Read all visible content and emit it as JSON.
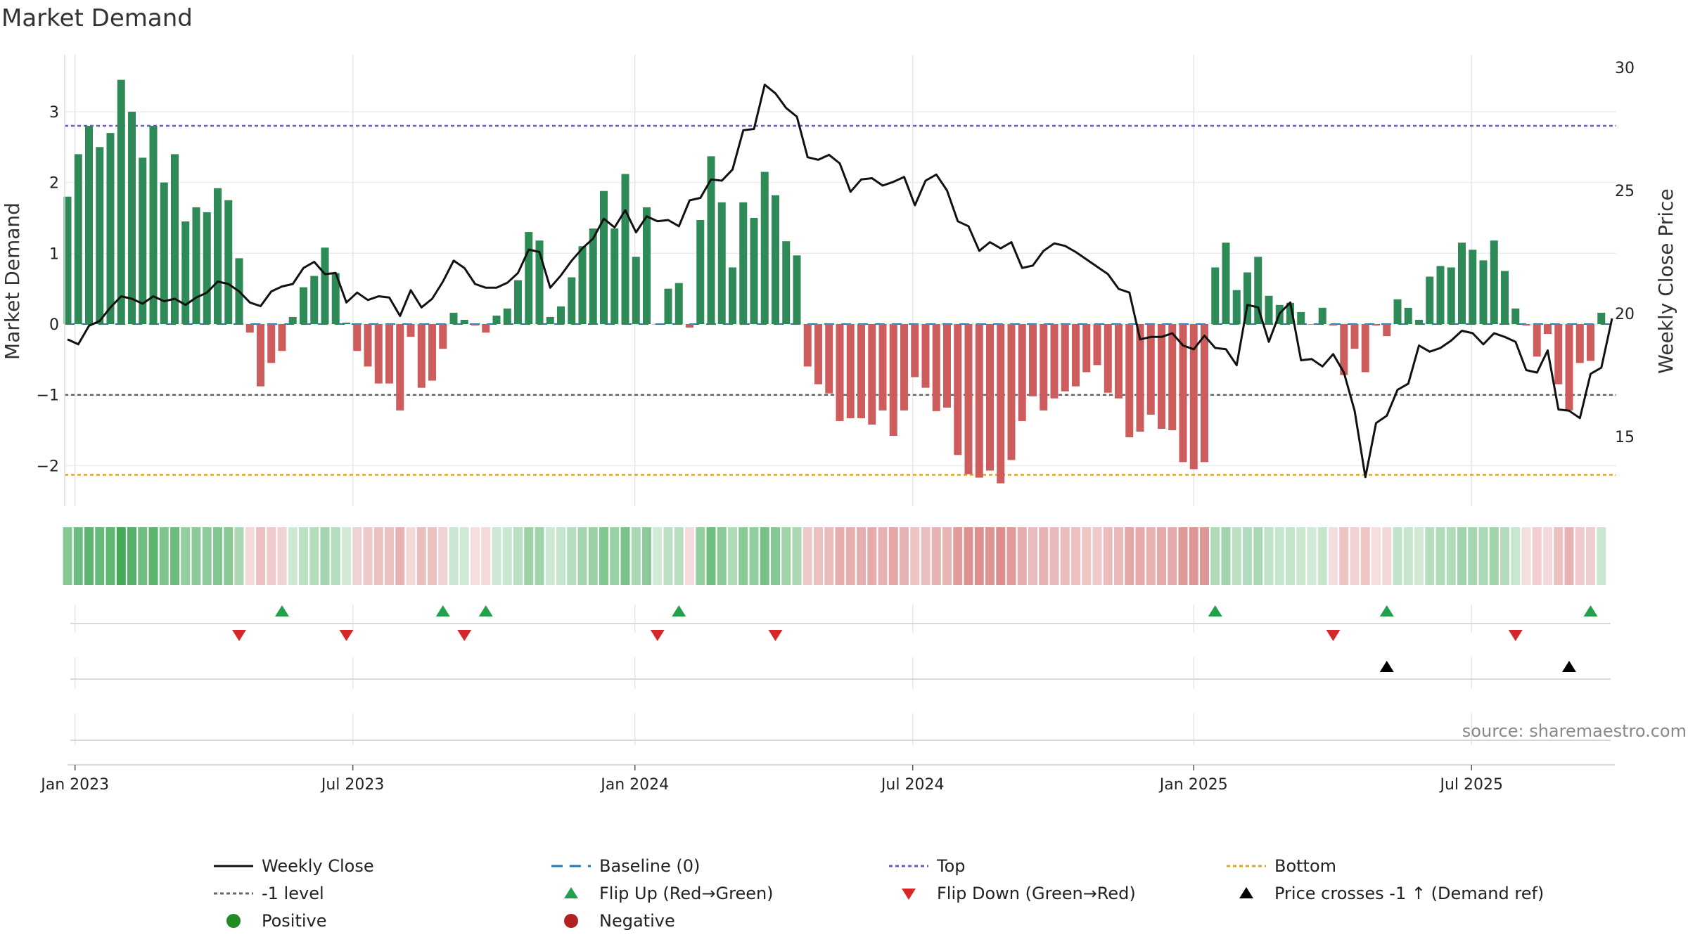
{
  "title": "Market Demand",
  "source": "source: sharemaestro.com",
  "colors": {
    "pos": "#2e8b57",
    "neg": "#cd5c5c",
    "close": "#111111",
    "top": "#6a5acd",
    "bottom": "#daa520",
    "minus1": "#666666",
    "baseline": "#1f77b4",
    "flip_up": "#22a04b",
    "flip_down": "#d62728",
    "cross": "#000000",
    "positive_dot": "#228b22",
    "negative_dot": "#b22222"
  },
  "chart_data": {
    "type": "bar+line",
    "title": "Market Demand",
    "ylabel_left": "Market Demand",
    "ylabel_right": "Weekly Close Price",
    "ylim_left": [
      -2.6,
      3.8
    ],
    "ylim_right": [
      12,
      31
    ],
    "yticks_left": [
      3,
      2,
      1,
      0,
      -1,
      -2
    ],
    "yticks_left_labels": [
      "3",
      "2",
      "1",
      "0",
      "−1",
      "−2"
    ],
    "yticks_right": [
      30,
      25,
      20,
      15
    ],
    "yticks_right_labels": [
      "30",
      "25",
      "20",
      "15"
    ],
    "x_start": "2022-12-26",
    "x_end": "2025-09-22",
    "xtick_labels": [
      "Jan 2023",
      "Jul 2023",
      "Jan 2024",
      "Jul 2024",
      "Jan 2025",
      "Jul 2025"
    ],
    "xtick_weeks": [
      0.7,
      26.6,
      52.9,
      78.8,
      105,
      130.9
    ],
    "reference_lines": {
      "top": 2.8,
      "minus1": -1.0,
      "bottom": -2.13,
      "baseline": 0
    },
    "demand": [
      1.8,
      2.4,
      2.8,
      2.5,
      2.7,
      3.45,
      3.0,
      2.35,
      2.8,
      2.0,
      2.4,
      1.45,
      1.65,
      1.58,
      1.92,
      1.75,
      0.93,
      -0.12,
      -0.88,
      -0.55,
      -0.38,
      0.1,
      0.52,
      0.68,
      1.08,
      0.72,
      0.02,
      -0.38,
      -0.6,
      -0.84,
      -0.84,
      -1.22,
      -0.18,
      -0.9,
      -0.8,
      -0.35,
      0.16,
      0.06,
      -0.02,
      -0.12,
      0.12,
      0.22,
      0.62,
      1.3,
      1.18,
      0.1,
      0.25,
      0.66,
      1.1,
      1.35,
      1.88,
      1.35,
      2.12,
      0.95,
      1.65,
      0.0,
      0.5,
      0.58,
      -0.05,
      1.47,
      2.37,
      1.72,
      0.8,
      1.72,
      1.5,
      2.15,
      1.82,
      1.17,
      0.97,
      -0.6,
      -0.85,
      -0.98,
      -1.37,
      -1.33,
      -1.33,
      -1.42,
      -1.22,
      -1.58,
      -1.22,
      -0.75,
      -0.9,
      -1.23,
      -1.18,
      -1.85,
      -2.12,
      -2.17,
      -2.07,
      -2.25,
      -1.92,
      -1.37,
      -1.02,
      -1.22,
      -1.05,
      -0.95,
      -0.88,
      -0.68,
      -0.58,
      -0.97,
      -1.05,
      -1.6,
      -1.52,
      -1.28,
      -1.48,
      -1.5,
      -1.95,
      -2.05,
      -1.95,
      0.8,
      1.15,
      0.48,
      0.73,
      0.95,
      0.4,
      0.27,
      0.3,
      0.17,
      0.0,
      0.23,
      -0.02,
      -0.72,
      -0.35,
      -0.68,
      -0.02,
      -0.17,
      0.35,
      0.23,
      0.06,
      0.67,
      0.82,
      0.8,
      1.15,
      1.05,
      0.9,
      1.18,
      0.75,
      0.22,
      -0.02,
      -0.46,
      -0.14,
      -0.85,
      -1.22,
      -0.55,
      -0.52,
      0.16
    ],
    "close": [
      18.95,
      18.75,
      19.5,
      19.7,
      20.25,
      20.7,
      20.6,
      20.4,
      20.7,
      20.5,
      20.6,
      20.35,
      20.65,
      20.85,
      21.3,
      21.2,
      20.9,
      20.45,
      20.3,
      20.9,
      21.1,
      21.2,
      21.85,
      22.1,
      21.6,
      21.65,
      20.45,
      20.85,
      20.55,
      20.7,
      20.65,
      19.9,
      20.95,
      20.25,
      20.6,
      21.3,
      22.15,
      21.85,
      21.2,
      21.05,
      21.05,
      21.25,
      21.65,
      22.6,
      22.5,
      21.05,
      21.55,
      22.15,
      22.65,
      23.05,
      23.85,
      23.5,
      24.2,
      23.3,
      23.95,
      23.75,
      23.8,
      23.55,
      24.6,
      24.7,
      25.45,
      25.4,
      25.85,
      27.45,
      27.5,
      29.3,
      28.95,
      28.35,
      28.0,
      26.35,
      26.25,
      26.45,
      26.1,
      24.95,
      25.45,
      25.5,
      25.2,
      25.35,
      25.55,
      24.4,
      25.4,
      25.65,
      25.0,
      23.75,
      23.55,
      22.55,
      22.9,
      22.65,
      22.9,
      21.85,
      21.95,
      22.55,
      22.85,
      22.75,
      22.5,
      22.2,
      21.9,
      21.6,
      21.0,
      20.85,
      18.95,
      19.05,
      19.05,
      19.2,
      18.7,
      18.55,
      19.1,
      18.6,
      18.55,
      17.9,
      20.35,
      20.25,
      18.85,
      20.0,
      20.45,
      18.1,
      18.15,
      17.85,
      18.35,
      17.6,
      16.05,
      13.35,
      15.55,
      15.85,
      16.9,
      17.15,
      18.7,
      18.45,
      18.6,
      18.9,
      19.3,
      19.2,
      18.75,
      19.2,
      19.05,
      18.85,
      17.7,
      17.6,
      18.5,
      16.1,
      16.05,
      15.75,
      17.55,
      17.8,
      19.8
    ],
    "heat_strip": "weekly color intensity bars matching demand sign and magnitude",
    "flip_up_weeks": [
      20,
      35,
      39,
      57,
      107,
      123,
      142
    ],
    "flip_down_weeks": [
      16,
      26,
      37,
      55,
      66,
      118,
      135
    ],
    "price_cross_weeks": [
      123,
      140
    ],
    "legend": [
      {
        "key": "close",
        "label": "Weekly Close"
      },
      {
        "key": "baseline",
        "label": "Baseline (0)"
      },
      {
        "key": "top",
        "label": "Top"
      },
      {
        "key": "bottom",
        "label": "Bottom"
      },
      {
        "key": "minus1",
        "label": "-1 level"
      },
      {
        "key": "flip_up",
        "label": "Flip Up (Red→Green)"
      },
      {
        "key": "flip_down",
        "label": "Flip Down (Green→Red)"
      },
      {
        "key": "cross",
        "label": "Price crosses -1 ↑ (Demand ref)"
      },
      {
        "key": "positive",
        "label": "Positive"
      },
      {
        "key": "negative",
        "label": "Negative"
      }
    ]
  }
}
